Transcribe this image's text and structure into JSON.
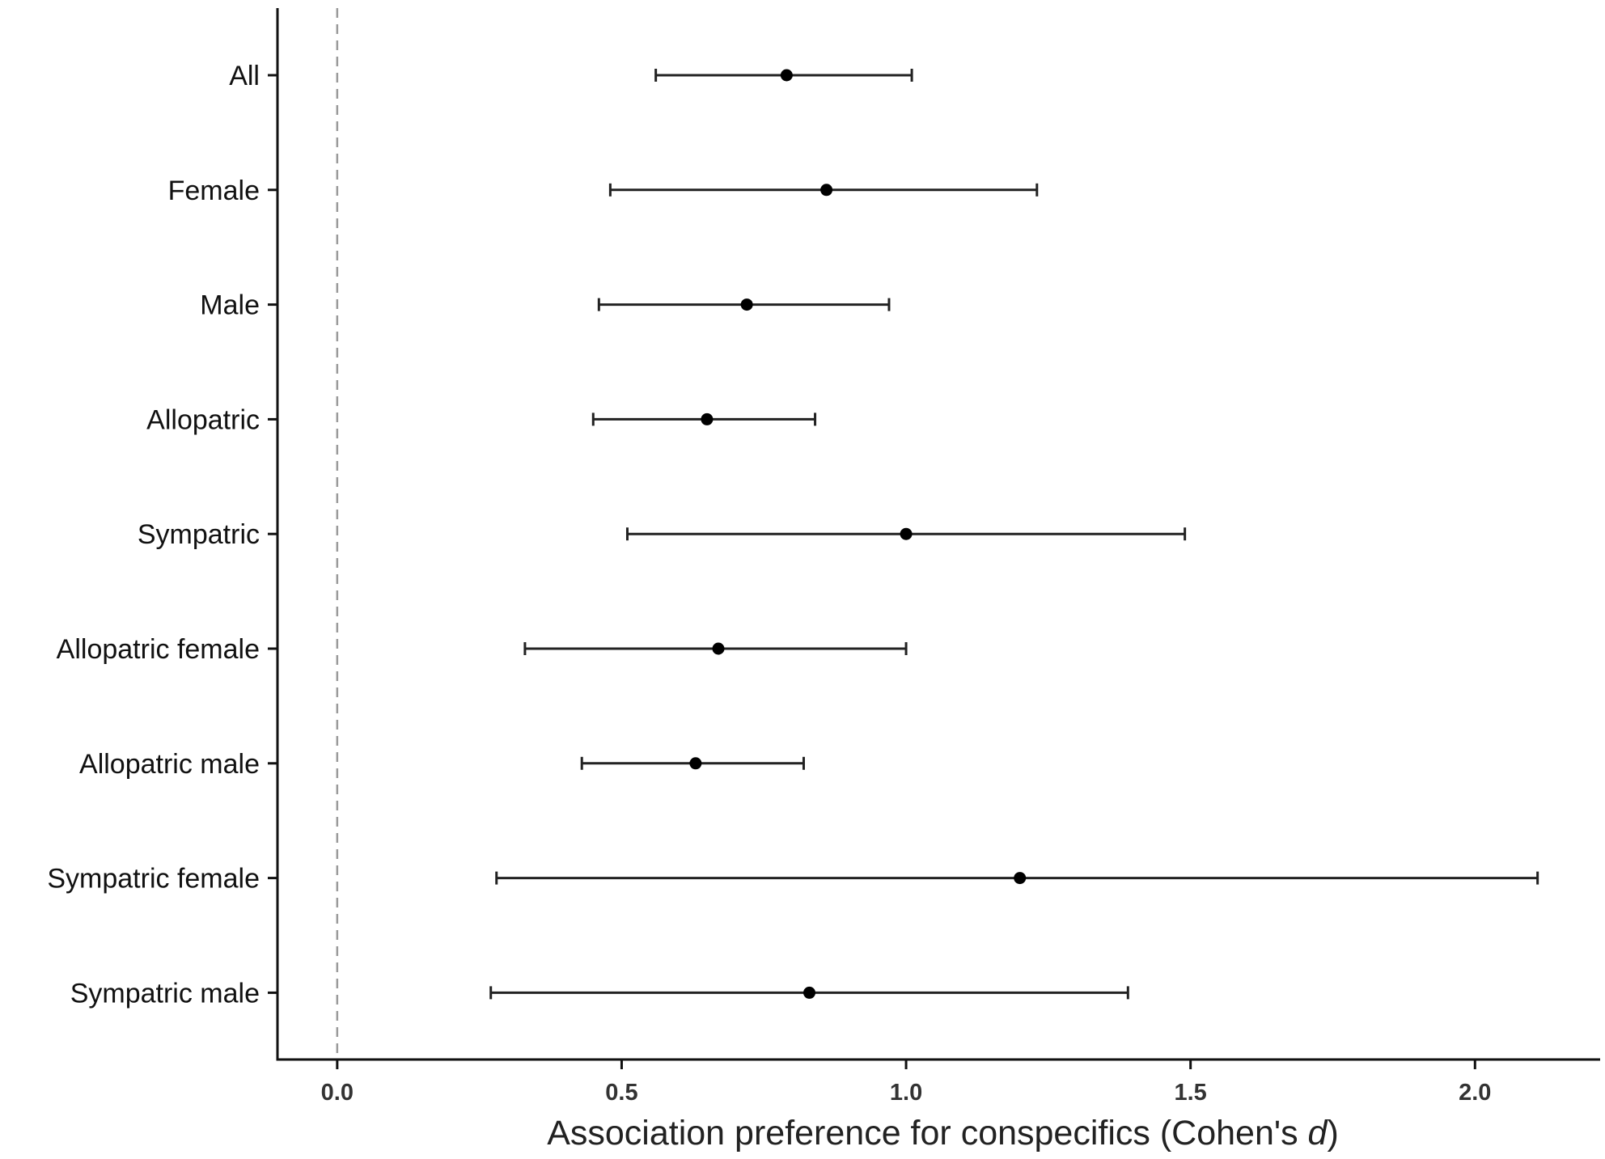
{
  "chart_data": {
    "type": "scatter",
    "subtype": "forest-plot",
    "title": "",
    "xlabel": "Association preference for conspecifics (Cohen's ",
    "xlabel_italic": "d",
    "xlabel_close": ")",
    "ylabel": "",
    "xlim": [
      -0.105,
      2.22
    ],
    "x_ticks": [
      0.0,
      0.5,
      1.0,
      1.5,
      2.0
    ],
    "x_tick_labels": [
      "0.0",
      "0.5",
      "1.0",
      "1.5",
      "2.0"
    ],
    "reference_line": 0,
    "grid": false,
    "categories": [
      "All",
      "Female",
      "Male",
      "Allopatric",
      "Sympatric",
      "Allopatric female",
      "Allopatric male",
      "Sympatric female",
      "Sympatric male"
    ],
    "series": [
      {
        "estimate": [
          0.79,
          0.86,
          0.72,
          0.65,
          1.0,
          0.67,
          0.63,
          1.2,
          0.83
        ],
        "lower": [
          0.56,
          0.48,
          0.46,
          0.45,
          0.51,
          0.33,
          0.43,
          0.28,
          0.27
        ],
        "upper": [
          1.01,
          1.23,
          0.97,
          0.84,
          1.49,
          1.0,
          0.82,
          2.11,
          1.39
        ]
      }
    ]
  }
}
